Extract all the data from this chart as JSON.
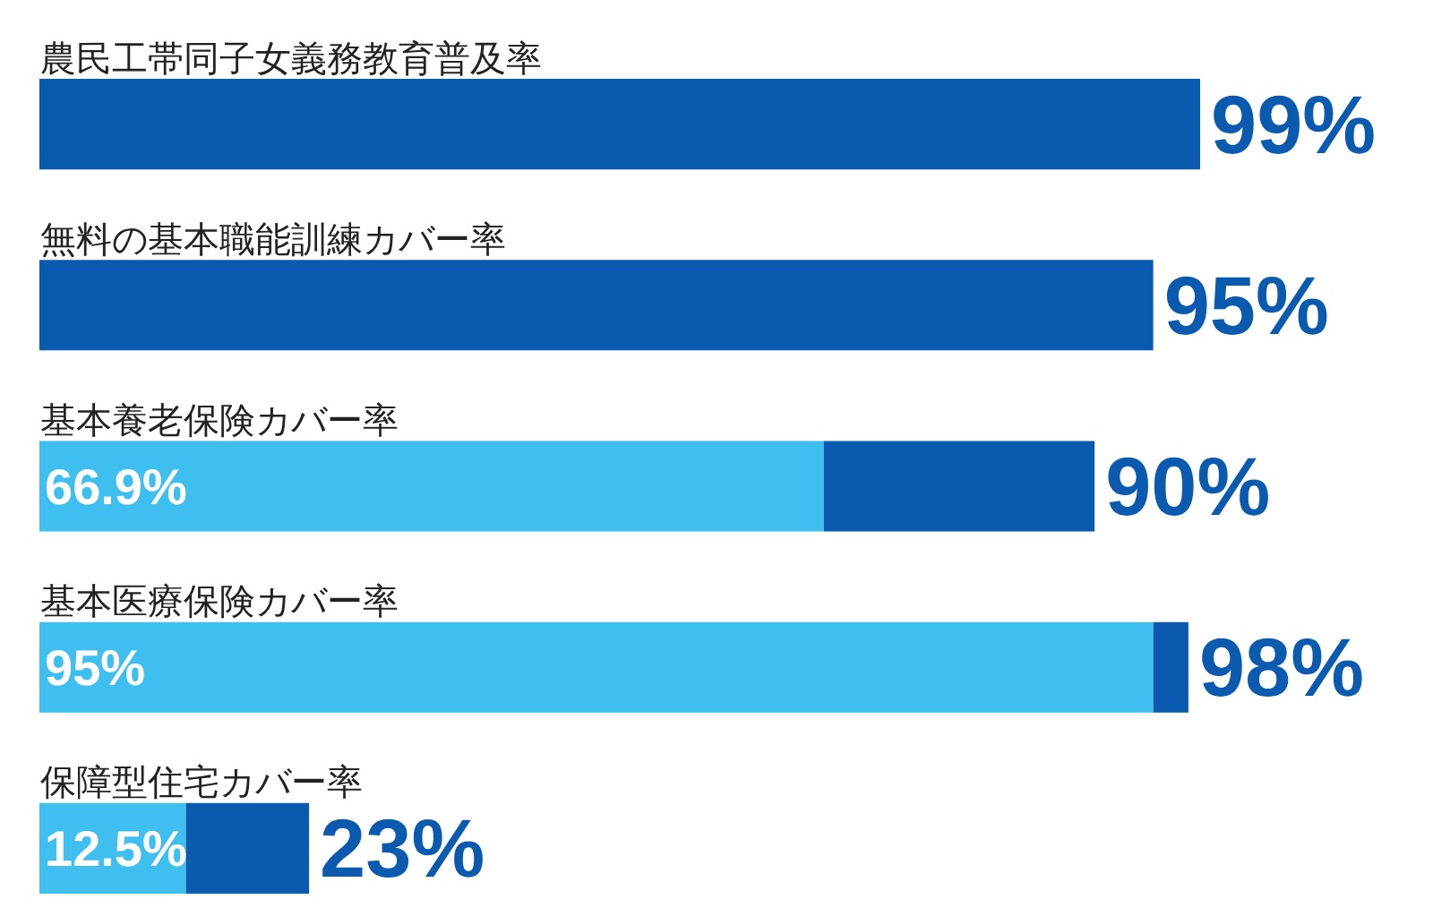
{
  "chart_data": {
    "type": "bar",
    "orientation": "horizontal",
    "stacked": true,
    "tick_labels": "y",
    "categories": [
      "農民工帯同子女義務教育普及率",
      "無料の基本職能訓練カバー率",
      "基本養老保険カバー率",
      "基本医療保険カバー率",
      "保障型住宅カバー率"
    ],
    "series": [
      {
        "color": "#3fbfef",
        "values": [
          null,
          null,
          66.9,
          95,
          12.5
        ],
        "value_labels": [
          null,
          null,
          "66.9%",
          "95%",
          "12.5%"
        ]
      },
      {
        "color": "#0a5bb0",
        "values": [
          99,
          95,
          23.1,
          3,
          10.5
        ]
      }
    ],
    "totals": [
      "99%",
      "95%",
      "90%",
      "98%",
      "23%"
    ]
  }
}
